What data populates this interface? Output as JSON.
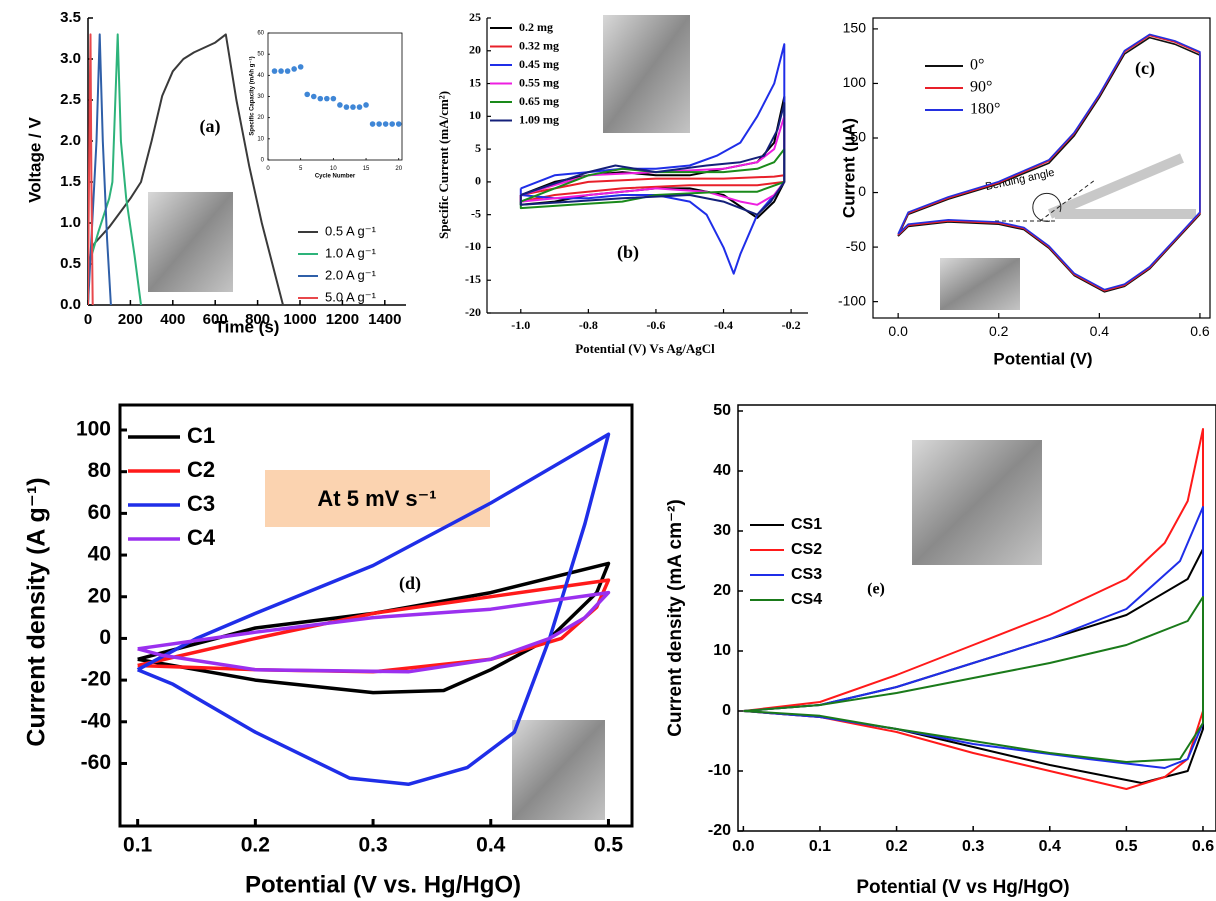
{
  "chart_data": [
    {
      "type": "line",
      "panel_label": "(a)",
      "x_label": "Time (s)",
      "y_label": "Voltage / V",
      "xlim": [
        0,
        1500
      ],
      "ylim": [
        0,
        3.5
      ],
      "xticks": [
        {
          "value": 0,
          "label": "0"
        },
        200,
        400,
        600,
        800,
        1000,
        1200,
        1400
      ],
      "yticks": [
        {
          "value": 0,
          "label": "0.0"
        },
        0.5,
        {
          "value": 1,
          "label": "1.0"
        },
        1.5,
        {
          "value": 2,
          "label": "2.0"
        },
        2.5,
        {
          "value": 3,
          "label": "3.0"
        },
        3.5
      ],
      "legend": "lower right",
      "series": [
        {
          "name": "0.5 A g⁻¹",
          "color": "#3a3a3a",
          "x": [
            0,
            5,
            30,
            100,
            200,
            250,
            300,
            350,
            400,
            450,
            500,
            600,
            650,
            700,
            760,
            820,
            870,
            920
          ],
          "values": [
            0,
            0.55,
            0.75,
            0.95,
            1.3,
            1.5,
            2.0,
            2.55,
            2.85,
            3.0,
            3.08,
            3.2,
            3.3,
            2.5,
            1.7,
            1.0,
            0.5,
            0
          ]
        },
        {
          "name": "1.0 A g⁻¹",
          "color": "#2db37a",
          "x": [
            0,
            5,
            50,
            100,
            115,
            140,
            155,
            180,
            220,
            250
          ],
          "values": [
            0,
            0.5,
            0.9,
            1.3,
            1.5,
            3.3,
            2.0,
            1.3,
            0.6,
            0
          ]
        },
        {
          "name": "2.0 A g⁻¹",
          "color": "#2f5fa8",
          "x": [
            0,
            10,
            40,
            55,
            70,
            90,
            108
          ],
          "values": [
            0,
            0.5,
            2.0,
            3.3,
            2.0,
            0.8,
            0
          ]
        },
        {
          "name": "5.0 A g⁻¹",
          "color": "#e8474b",
          "x": [
            0,
            3,
            8,
            12,
            16,
            22
          ],
          "values": [
            0,
            1.0,
            2.5,
            3.3,
            1.5,
            0
          ]
        }
      ]
    },
    {
      "type": "scatter",
      "x_label": "Cycle Number",
      "y_label": "Specific Capacity (mAh g⁻¹)",
      "xlim": [
        0,
        20.5
      ],
      "ylim": [
        0,
        60
      ],
      "xticks": [
        0,
        5,
        10,
        15,
        20
      ],
      "yticks": [
        0,
        10,
        20,
        30,
        40,
        50,
        60
      ],
      "color": "#3f86d6",
      "x": [
        1,
        2,
        3,
        4,
        5,
        6,
        7,
        8,
        9,
        10,
        11,
        12,
        13,
        14,
        15,
        16,
        17,
        18,
        19,
        20
      ],
      "values": [
        42,
        42,
        42,
        43,
        44,
        31,
        30,
        29,
        29,
        29,
        26,
        25,
        25,
        25,
        26,
        17,
        17,
        17,
        17,
        17
      ]
    },
    {
      "type": "line",
      "panel_label": "(b)",
      "x_label": "Potential (V) Vs Ag/AgCl",
      "y_label": "Specific Current (mA/cm²)",
      "xlim": [
        -1.1,
        -0.15
      ],
      "ylim": [
        -20,
        25
      ],
      "xticks": [
        {
          "value": -1,
          "label": "-1.0"
        },
        -0.8,
        -0.6,
        -0.4,
        -0.2
      ],
      "yticks": [
        -20,
        -15,
        -10,
        -5,
        0,
        5,
        10,
        15,
        20,
        25
      ],
      "legend": "upper left",
      "series": [
        {
          "name": "0.2 mg",
          "color": "#000000",
          "x": [
            -1.0,
            -0.9,
            -0.8,
            -0.7,
            -0.6,
            -0.5,
            -0.4,
            -0.3,
            -0.25,
            -0.22,
            -0.22,
            -0.25,
            -0.3,
            -0.4,
            -0.5,
            -0.6,
            -0.7,
            -0.8,
            -0.9,
            -1.0,
            -1.0
          ],
          "values": [
            -2,
            0,
            1,
            1.5,
            1,
            1,
            2,
            3,
            6,
            13,
            0,
            -3,
            -5.5,
            -2,
            -1,
            -1,
            -1.5,
            -2,
            -3,
            -3.5,
            -2
          ]
        },
        {
          "name": "0.32 mg",
          "color": "#e8202a",
          "x": [
            -1.0,
            -0.8,
            -0.6,
            -0.4,
            -0.25,
            -0.22,
            -0.22,
            -0.3,
            -0.5,
            -0.7,
            -0.9,
            -1.0,
            -1.0
          ],
          "values": [
            -2,
            0,
            0.5,
            0.5,
            0.8,
            1,
            0,
            -0.5,
            -0.5,
            -1,
            -2,
            -3,
            -2
          ]
        },
        {
          "name": "0.45 mg",
          "color": "#1f2ee8",
          "x": [
            -1.0,
            -0.9,
            -0.8,
            -0.7,
            -0.6,
            -0.5,
            -0.42,
            -0.35,
            -0.3,
            -0.25,
            -0.22,
            -0.22,
            -0.25,
            -0.3,
            -0.35,
            -0.37,
            -0.4,
            -0.45,
            -0.5,
            -0.6,
            -0.7,
            -0.8,
            -0.9,
            -1.0,
            -1.0
          ],
          "values": [
            -1,
            1,
            1.5,
            2,
            2,
            2.5,
            4,
            6,
            10,
            15,
            21,
            0,
            -2,
            -5,
            -11,
            -14,
            -10,
            -5,
            -3,
            -2,
            -2,
            -2.5,
            -2.5,
            -2,
            -1
          ]
        },
        {
          "name": "0.55 mg",
          "color": "#ee1ee0",
          "x": [
            -1.0,
            -0.8,
            -0.6,
            -0.4,
            -0.3,
            -0.25,
            -0.22,
            -0.22,
            -0.25,
            -0.3,
            -0.35,
            -0.45,
            -0.6,
            -0.8,
            -1.0,
            -1.0
          ],
          "values": [
            -2,
            1,
            1.5,
            2,
            3,
            5,
            10,
            0,
            -2,
            -3.5,
            -3,
            -1.5,
            -1,
            -2,
            -3,
            -2
          ]
        },
        {
          "name": "0.65 mg",
          "color": "#1a8a1a",
          "x": [
            -1.0,
            -0.8,
            -0.7,
            -0.6,
            -0.4,
            -0.3,
            -0.25,
            -0.22,
            -0.22,
            -0.3,
            -0.4,
            -0.6,
            -0.7,
            -0.85,
            -1.0,
            -1.0
          ],
          "values": [
            -3,
            1,
            2,
            1.5,
            1.5,
            2,
            3,
            5,
            0,
            -1.5,
            -1.5,
            -2,
            -3,
            -3.5,
            -4,
            -3
          ]
        },
        {
          "name": "1.09 mg",
          "color": "#14207a",
          "x": [
            -1.0,
            -0.8,
            -0.72,
            -0.6,
            -0.45,
            -0.35,
            -0.28,
            -0.24,
            -0.22,
            -0.22,
            -0.26,
            -0.3,
            -0.4,
            -0.5,
            -0.7,
            -0.85,
            -1.0,
            -1.0
          ],
          "values": [
            -2,
            1.5,
            2.5,
            1.5,
            2.5,
            3,
            4,
            8,
            12,
            0,
            -3,
            -5,
            -3,
            -2,
            -2.5,
            -3,
            -3.5,
            -2
          ]
        }
      ]
    },
    {
      "type": "line",
      "panel_label": "(c)",
      "x_label": "Potential (V)",
      "y_label": "Current (μA)",
      "annotation": "Bending angle",
      "xlim": [
        -0.05,
        0.62
      ],
      "ylim": [
        -115,
        160
      ],
      "xticks": [
        {
          "value": 0,
          "label": "0.0"
        },
        0.2,
        0.4,
        0.6
      ],
      "yticks": [
        -100,
        -50,
        0,
        50,
        100,
        150
      ],
      "legend": "upper left",
      "series": [
        {
          "name": "0°",
          "color": "#111111",
          "x": [
            0,
            0.02,
            0.1,
            0.2,
            0.3,
            0.35,
            0.4,
            0.45,
            0.5,
            0.55,
            0.6,
            0.6,
            0.55,
            0.5,
            0.45,
            0.41,
            0.35,
            0.3,
            0.25,
            0.2,
            0.1,
            0.02,
            0
          ],
          "values": [
            -40,
            -20,
            -6,
            8,
            27,
            52,
            87,
            127,
            142,
            136,
            126,
            -20,
            -45,
            -70,
            -86,
            -91,
            -76,
            -51,
            -34,
            -29,
            -27,
            -31,
            -40
          ]
        },
        {
          "name": "90°",
          "color": "#e8202a",
          "x": [
            0,
            0.02,
            0.1,
            0.2,
            0.3,
            0.35,
            0.4,
            0.45,
            0.5,
            0.55,
            0.6,
            0.6,
            0.55,
            0.5,
            0.45,
            0.41,
            0.35,
            0.3,
            0.25,
            0.2,
            0.1,
            0.02,
            0
          ],
          "values": [
            -39,
            -19,
            -5,
            9,
            29,
            54,
            89,
            129,
            144,
            138,
            128,
            -19,
            -44,
            -69,
            -85,
            -90,
            -75,
            -50,
            -33,
            -28,
            -26,
            -30,
            -39
          ]
        },
        {
          "name": "180°",
          "color": "#2430e0",
          "x": [
            0,
            0.02,
            0.1,
            0.2,
            0.3,
            0.35,
            0.4,
            0.45,
            0.5,
            0.55,
            0.6,
            0.6,
            0.55,
            0.5,
            0.45,
            0.41,
            0.35,
            0.3,
            0.25,
            0.2,
            0.1,
            0.02,
            0
          ],
          "values": [
            -38,
            -18,
            -4,
            10,
            30,
            55,
            90,
            130,
            145,
            139,
            129,
            -18,
            -43,
            -68,
            -84,
            -89,
            -74,
            -49,
            -32,
            -27,
            -25,
            -29,
            -38
          ]
        }
      ]
    },
    {
      "type": "line",
      "panel_label": "(d)",
      "x_label": "Potential (V vs. Hg/HgO)",
      "y_label": "Current density (A g⁻¹)",
      "annotation": "At 5 mV s⁻¹",
      "xlim": [
        0.085,
        0.52
      ],
      "ylim": [
        -90,
        112
      ],
      "xticks": [
        0.1,
        0.2,
        0.3,
        0.4,
        0.5
      ],
      "yticks": [
        -60,
        -40,
        -20,
        0,
        20,
        40,
        60,
        80,
        100
      ],
      "legend": "upper left",
      "series": [
        {
          "name": "C1",
          "color": "#000000",
          "x": [
            0.1,
            0.2,
            0.3,
            0.4,
            0.5,
            0.49,
            0.45,
            0.4,
            0.36,
            0.3,
            0.2,
            0.1
          ],
          "values": [
            -10,
            5,
            12,
            22,
            36,
            22,
            0,
            -15,
            -25,
            -26,
            -20,
            -10
          ]
        },
        {
          "name": "C2",
          "color": "#ff1a1a",
          "x": [
            0.1,
            0.2,
            0.3,
            0.4,
            0.5,
            0.49,
            0.46,
            0.4,
            0.3,
            0.2,
            0.1
          ],
          "values": [
            -13,
            0,
            12,
            20,
            28,
            15,
            0,
            -10,
            -16,
            -15,
            -13
          ]
        },
        {
          "name": "C3",
          "color": "#1f2ee8",
          "x": [
            0.1,
            0.15,
            0.2,
            0.3,
            0.4,
            0.47,
            0.5,
            0.48,
            0.45,
            0.42,
            0.38,
            0.33,
            0.28,
            0.2,
            0.13,
            0.1
          ],
          "values": [
            -15,
            0,
            12,
            35,
            65,
            88,
            98,
            55,
            0,
            -45,
            -62,
            -70,
            -67,
            -45,
            -22,
            -15
          ]
        },
        {
          "name": "C4",
          "color": "#9b30ef",
          "x": [
            0.1,
            0.2,
            0.3,
            0.4,
            0.5,
            0.48,
            0.45,
            0.4,
            0.33,
            0.2,
            0.12,
            0.1
          ],
          "values": [
            -5,
            3,
            10,
            14,
            22,
            10,
            0,
            -10,
            -16,
            -15,
            -8,
            -5
          ]
        }
      ]
    },
    {
      "type": "line",
      "panel_label": "(e)",
      "x_label": "Potential (V vs Hg/HgO)",
      "y_label": "Current density (mA cm⁻²)",
      "xlim": [
        -0.007,
        0.617
      ],
      "ylim": [
        -20,
        51
      ],
      "xticks": [
        {
          "value": 0,
          "label": "0.0"
        },
        0.1,
        0.2,
        0.3,
        0.4,
        0.5,
        0.6
      ],
      "yticks": [
        -20,
        -10,
        0,
        10,
        20,
        30,
        40,
        50
      ],
      "legend": "center left",
      "series": [
        {
          "name": "CS1",
          "color": "#000000",
          "x": [
            0,
            0.1,
            0.2,
            0.3,
            0.4,
            0.5,
            0.58,
            0.6,
            0.6,
            0.58,
            0.52,
            0.4,
            0.3,
            0.2,
            0.1,
            0
          ],
          "values": [
            0,
            1,
            4,
            8,
            12,
            16,
            22,
            27,
            -3,
            -10,
            -12,
            -9,
            -6,
            -3,
            -1,
            0
          ]
        },
        {
          "name": "CS2",
          "color": "#ff1a1a",
          "x": [
            0,
            0.1,
            0.2,
            0.3,
            0.4,
            0.5,
            0.55,
            0.58,
            0.6,
            0.6,
            0.58,
            0.55,
            0.5,
            0.4,
            0.3,
            0.2,
            0.1,
            0
          ],
          "values": [
            0,
            1.5,
            6,
            11,
            16,
            22,
            28,
            35,
            47,
            0,
            -8,
            -11,
            -13,
            -10,
            -7,
            -3.5,
            -1,
            0
          ]
        },
        {
          "name": "CS3",
          "color": "#1f2ee8",
          "x": [
            0,
            0.1,
            0.2,
            0.3,
            0.4,
            0.5,
            0.57,
            0.6,
            0.6,
            0.58,
            0.55,
            0.45,
            0.3,
            0.2,
            0.1,
            0
          ],
          "values": [
            0,
            1,
            4,
            8,
            12,
            17,
            25,
            34,
            -2,
            -8,
            -9.5,
            -8,
            -5.5,
            -3,
            -1,
            0
          ]
        },
        {
          "name": "CS4",
          "color": "#1a7a1a",
          "x": [
            0,
            0.1,
            0.2,
            0.3,
            0.4,
            0.5,
            0.58,
            0.6,
            0.6,
            0.57,
            0.5,
            0.4,
            0.3,
            0.2,
            0.1,
            0
          ],
          "values": [
            0,
            1,
            3,
            5.5,
            8,
            11,
            15,
            19,
            -2,
            -8,
            -8.5,
            -7,
            -5,
            -3,
            -0.8,
            0
          ]
        }
      ]
    }
  ]
}
